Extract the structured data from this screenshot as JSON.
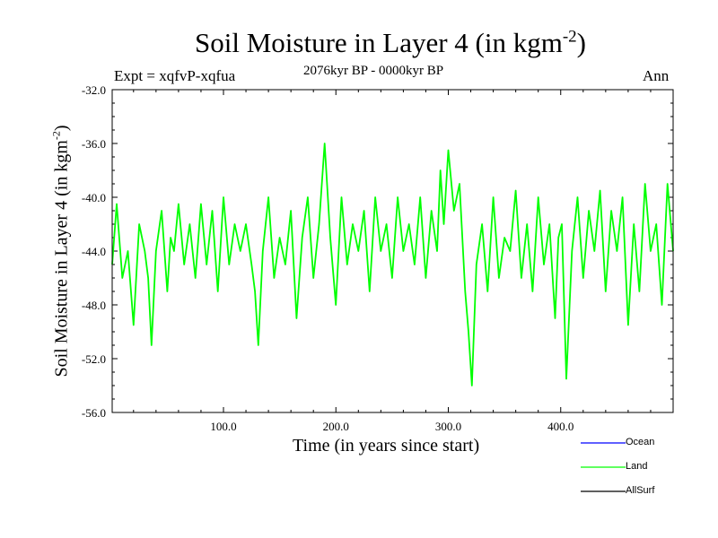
{
  "header": {
    "title": "Soil Moisture in Layer 4 (in kgm",
    "title_exp": "-2",
    "title_tail": ")",
    "expt": "Expt = xqfvP-xqfua",
    "period": "2076kyr BP - 0000kyr BP",
    "season": "Ann"
  },
  "chart_data": {
    "type": "line",
    "title": "Soil Moisture in Layer 4 (in kgm-2)",
    "xlabel": "Time (in years since start)",
    "ylabel": "Soil Moisture in Layer 4 (in kgm-2)",
    "ylabel_main": "Soil Moisture in Layer 4 (in kgm",
    "ylabel_exp": "-2",
    "ylabel_tail": ")",
    "xlim": [
      1,
      500
    ],
    "ylim": [
      -56,
      -32
    ],
    "xticks": [
      100,
      200,
      300,
      400
    ],
    "xtick_labels": [
      "100.0",
      "200.0",
      "300.0",
      "400.0"
    ],
    "yticks": [
      -32,
      -36,
      -40,
      -44,
      -48,
      -52,
      -56
    ],
    "ytick_labels": [
      "-32.0",
      "-36.0",
      "-40.0",
      "-44.0",
      "-48.0",
      "-52.0",
      "-56.0"
    ],
    "legend": [
      "Ocean",
      "Land",
      "AllSurf"
    ],
    "legend_colors": [
      "#0000ff",
      "#00ff00",
      "#000000"
    ],
    "series": [
      {
        "name": "Land",
        "color": "#00ff00",
        "x": [
          1,
          5,
          10,
          15,
          20,
          25,
          30,
          33,
          36,
          40,
          45,
          50,
          53,
          56,
          60,
          65,
          70,
          75,
          80,
          85,
          90,
          95,
          100,
          105,
          110,
          115,
          120,
          125,
          128,
          131,
          135,
          140,
          145,
          150,
          155,
          160,
          165,
          170,
          175,
          180,
          185,
          190,
          195,
          200,
          205,
          210,
          215,
          220,
          225,
          230,
          235,
          240,
          245,
          250,
          255,
          260,
          265,
          270,
          275,
          280,
          285,
          290,
          293,
          296,
          300,
          305,
          310,
          315,
          318,
          321,
          325,
          330,
          335,
          340,
          345,
          350,
          355,
          360,
          365,
          370,
          375,
          380,
          385,
          390,
          395,
          398,
          401,
          405,
          410,
          415,
          420,
          425,
          430,
          435,
          440,
          445,
          450,
          455,
          460,
          465,
          470,
          475,
          480,
          485,
          490,
          495,
          500
        ],
        "y": [
          -45,
          -40.5,
          -46,
          -44,
          -49.5,
          -42,
          -44,
          -46,
          -51,
          -44,
          -41,
          -47,
          -43,
          -44,
          -40.5,
          -45,
          -42,
          -46,
          -40.5,
          -45,
          -41,
          -47,
          -40,
          -45,
          -42,
          -44,
          -42,
          -45,
          -47,
          -51,
          -44,
          -40,
          -46,
          -43,
          -45,
          -41,
          -49,
          -43,
          -40,
          -46,
          -42,
          -36,
          -43,
          -48,
          -40,
          -45,
          -42,
          -44,
          -41,
          -47,
          -40,
          -44,
          -42,
          -46,
          -40,
          -44,
          -42,
          -45,
          -40,
          -46,
          -41,
          -44,
          -38,
          -42,
          -36.5,
          -41,
          -39,
          -47,
          -50,
          -54,
          -45,
          -42,
          -47,
          -40,
          -46,
          -43,
          -44,
          -39.5,
          -46,
          -42,
          -47,
          -40,
          -45,
          -42,
          -49,
          -43,
          -42,
          -53.5,
          -44,
          -40,
          -46,
          -41,
          -44,
          -39.5,
          -47,
          -41,
          -44,
          -40,
          -49.5,
          -42,
          -47,
          -39,
          -44,
          -42,
          -48,
          -39,
          -44
        ]
      }
    ]
  }
}
